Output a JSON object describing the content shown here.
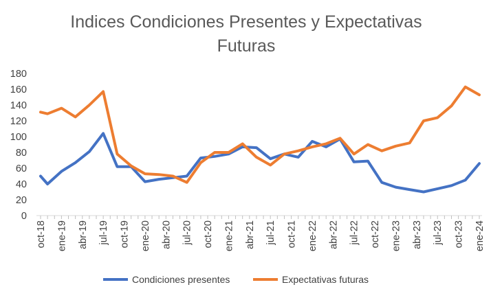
{
  "chart_data": {
    "type": "line",
    "title": [
      "Indices Condiciones Presentes y Expectativas",
      "Futuras"
    ],
    "xlabel": "",
    "ylabel": "",
    "ylim": [
      0,
      180
    ],
    "yticks": [
      0,
      20,
      40,
      60,
      80,
      100,
      120,
      140,
      160,
      180
    ],
    "x_start": "oct-18",
    "x_tick_labels": [
      "oct-18",
      "ene-19",
      "abr-19",
      "jul-19",
      "oct-19",
      "ene-20",
      "abr-20",
      "jul-20",
      "oct-20",
      "ene-21",
      "abr-21",
      "jul-21",
      "oct-21",
      "ene-22",
      "abr-22",
      "jul-22",
      "oct-22",
      "ene-23",
      "abr-23",
      "jul-23",
      "oct-23",
      "ene-24"
    ],
    "legend_position": "bottom",
    "series": [
      {
        "name": "Condiciones presentes",
        "color": "#4472C4",
        "points": [
          [
            0,
            50
          ],
          [
            1,
            40
          ],
          [
            3,
            56
          ],
          [
            5,
            67
          ],
          [
            7,
            81
          ],
          [
            9,
            104
          ],
          [
            11,
            62
          ],
          [
            13,
            62
          ],
          [
            15,
            43
          ],
          [
            17,
            46
          ],
          [
            19,
            48
          ],
          [
            21,
            50
          ],
          [
            23,
            73
          ],
          [
            25,
            75
          ],
          [
            27,
            78
          ],
          [
            29,
            87
          ],
          [
            31,
            86
          ],
          [
            33,
            72
          ],
          [
            35,
            78
          ],
          [
            37,
            74
          ],
          [
            39,
            94
          ],
          [
            41,
            87
          ],
          [
            43,
            97
          ],
          [
            45,
            68
          ],
          [
            47,
            69
          ],
          [
            49,
            42
          ],
          [
            51,
            36
          ],
          [
            53,
            33
          ],
          [
            55,
            30
          ],
          [
            57,
            34
          ],
          [
            59,
            38
          ],
          [
            61,
            45
          ],
          [
            63,
            66
          ]
        ]
      },
      {
        "name": "Expectativas futuras",
        "color": "#ED7D31",
        "points": [
          [
            0,
            131
          ],
          [
            1,
            129
          ],
          [
            3,
            136
          ],
          [
            5,
            125
          ],
          [
            7,
            140
          ],
          [
            9,
            157
          ],
          [
            11,
            78
          ],
          [
            13,
            63
          ],
          [
            15,
            53
          ],
          [
            17,
            52
          ],
          [
            19,
            50
          ],
          [
            21,
            42
          ],
          [
            23,
            67
          ],
          [
            25,
            80
          ],
          [
            27,
            80
          ],
          [
            29,
            91
          ],
          [
            31,
            74
          ],
          [
            33,
            64
          ],
          [
            35,
            78
          ],
          [
            37,
            82
          ],
          [
            39,
            87
          ],
          [
            41,
            91
          ],
          [
            43,
            98
          ],
          [
            45,
            78
          ],
          [
            47,
            90
          ],
          [
            49,
            82
          ],
          [
            51,
            88
          ],
          [
            53,
            92
          ],
          [
            55,
            120
          ],
          [
            57,
            124
          ],
          [
            59,
            139
          ],
          [
            61,
            163
          ],
          [
            63,
            153
          ]
        ]
      }
    ]
  }
}
